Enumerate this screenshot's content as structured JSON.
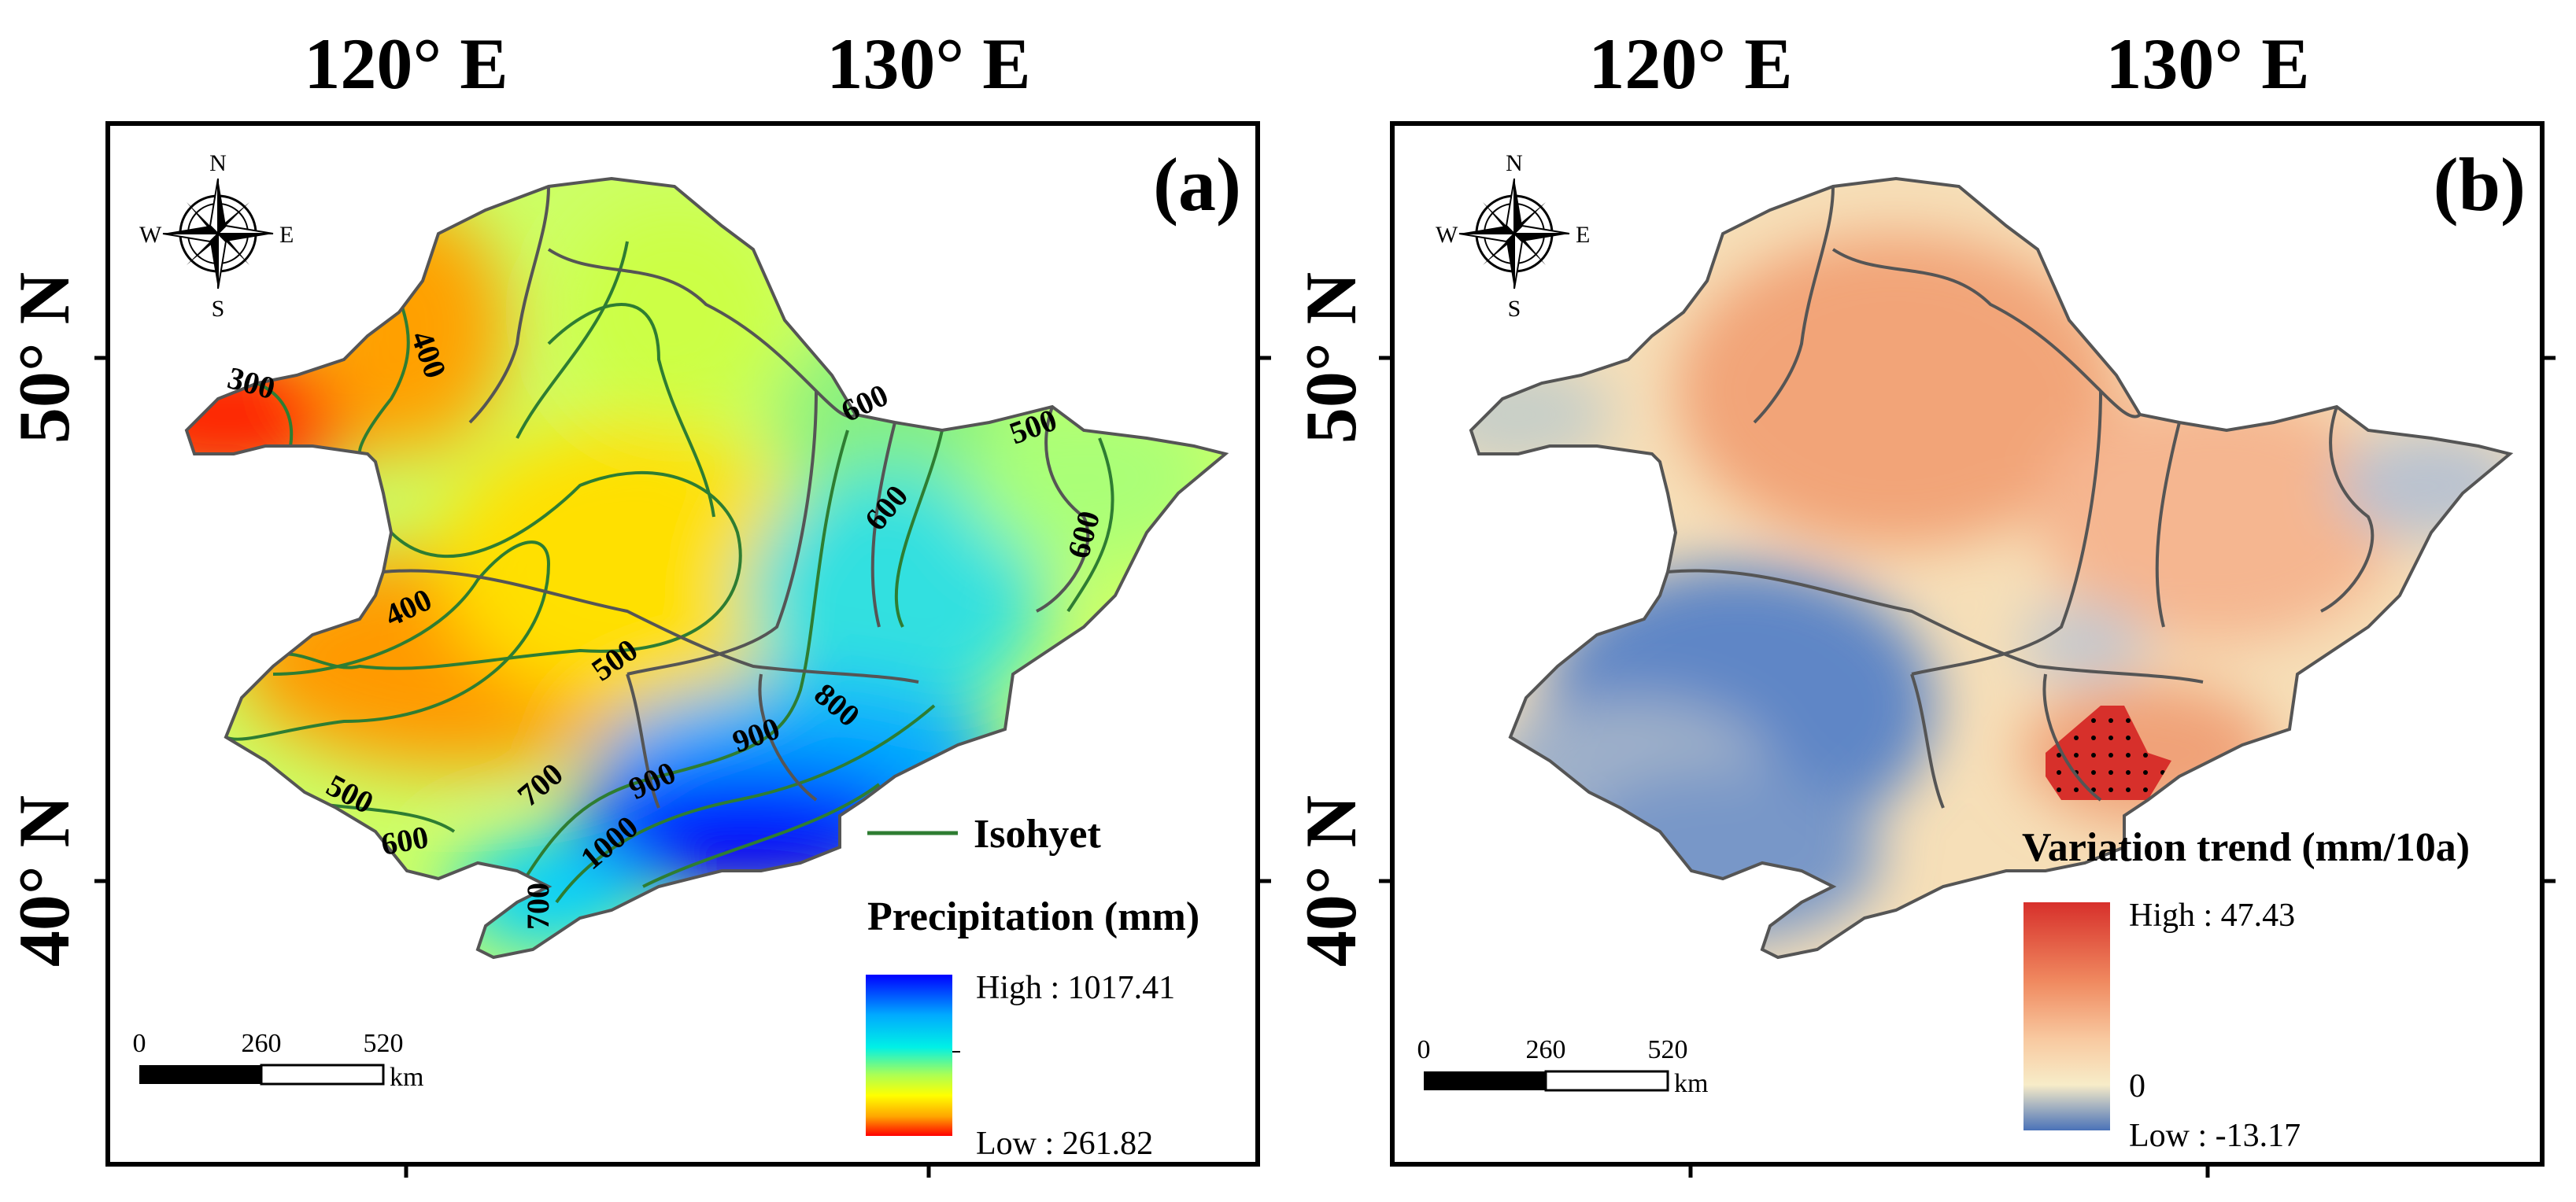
{
  "axes": {
    "lon_labels": [
      "120° E",
      "130° E"
    ],
    "lat_labels": [
      "50° N",
      "40° N"
    ]
  },
  "panels": [
    {
      "id": "a",
      "label": "(a)",
      "compass": {
        "n": "N",
        "s": "S",
        "e": "E",
        "w": "W"
      },
      "isohyet_labels": [
        "300",
        "400",
        "400",
        "500",
        "500",
        "500",
        "600",
        "600",
        "600",
        "600",
        "700",
        "700",
        "800",
        "900",
        "900",
        "1000"
      ],
      "legend": {
        "line_label": "Isohyet",
        "title": "Precipitation (mm)",
        "high": "High : 1017.41",
        "low": "Low : 261.82",
        "colors": [
          "#0000ff",
          "#00aaff",
          "#00f0e6",
          "#aaff55",
          "#ffff00",
          "#ffa500",
          "#ff0000"
        ]
      },
      "scale_bar": {
        "ticks": [
          "0",
          "260",
          "520"
        ],
        "unit": "km"
      }
    },
    {
      "id": "b",
      "label": "(b)",
      "compass": {
        "n": "N",
        "s": "S",
        "e": "E",
        "w": "W"
      },
      "legend": {
        "title": "Variation trend (mm/10a)",
        "high": "High : 47.43",
        "mid": "0",
        "low": "Low : -13.17",
        "colors": [
          "#d7302b",
          "#f08a60",
          "#f8c9a0",
          "#f7ecc8",
          "#4a72b8"
        ]
      },
      "significance_note": "",
      "scale_bar": {
        "ticks": [
          "0",
          "260",
          "520"
        ],
        "unit": "km"
      }
    }
  ]
}
